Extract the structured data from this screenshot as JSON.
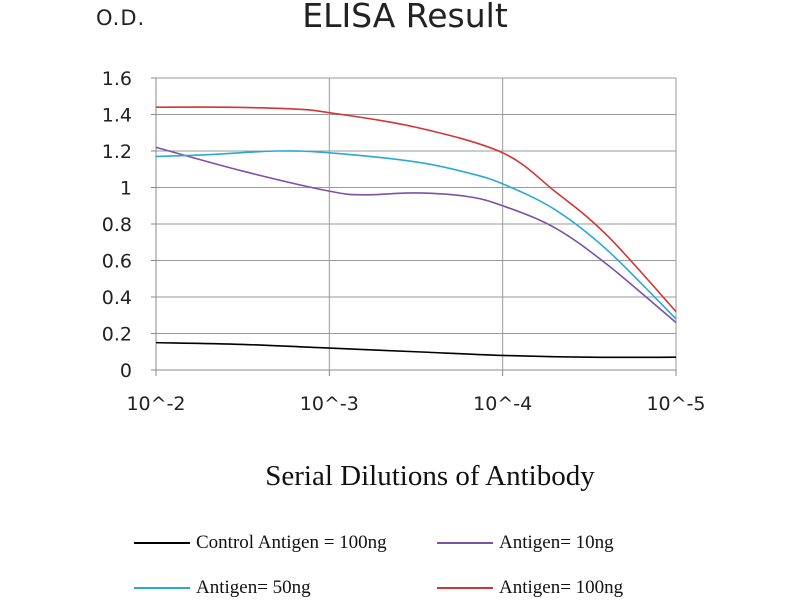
{
  "chart_data": {
    "type": "line",
    "title": "ELISA Result",
    "ylabel": "O.D.",
    "xlabel": "Serial Dilutions of Antibody",
    "categories": [
      "10^-2",
      "10^-3",
      "10^-4",
      "10^-5"
    ],
    "x": [
      0,
      1,
      2,
      3
    ],
    "yticks": [
      "0",
      "0.2",
      "0.4",
      "0.6",
      "0.8",
      "1",
      "1.2",
      "1.4",
      "1.6"
    ],
    "ylim": [
      0,
      1.6
    ],
    "grid": true,
    "legend_position": "bottom",
    "series": [
      {
        "name": "Control Antigen = 100ng",
        "color": "#000000",
        "points": [
          [
            0,
            0.15
          ],
          [
            0.5,
            0.14
          ],
          [
            1,
            0.12
          ],
          [
            1.5,
            0.1
          ],
          [
            2,
            0.08
          ],
          [
            2.5,
            0.07
          ],
          [
            3,
            0.07
          ]
        ]
      },
      {
        "name": "Antigen= 10ng",
        "color": "#7a52a6",
        "points": [
          [
            0,
            1.22
          ],
          [
            0.5,
            1.09
          ],
          [
            1,
            0.98
          ],
          [
            1.2,
            0.96
          ],
          [
            1.5,
            0.97
          ],
          [
            1.8,
            0.95
          ],
          [
            2,
            0.9
          ],
          [
            2.3,
            0.78
          ],
          [
            2.6,
            0.58
          ],
          [
            3,
            0.26
          ]
        ]
      },
      {
        "name": "Antigen= 50ng",
        "color": "#2aa9d6",
        "points": [
          [
            0,
            1.17
          ],
          [
            0.3,
            1.18
          ],
          [
            0.7,
            1.2
          ],
          [
            1,
            1.19
          ],
          [
            1.5,
            1.14
          ],
          [
            1.8,
            1.08
          ],
          [
            2,
            1.02
          ],
          [
            2.3,
            0.88
          ],
          [
            2.6,
            0.66
          ],
          [
            3,
            0.28
          ]
        ]
      },
      {
        "name": "Antigen= 100ng",
        "color": "#d23535",
        "points": [
          [
            0,
            1.44
          ],
          [
            0.4,
            1.44
          ],
          [
            0.8,
            1.43
          ],
          [
            1,
            1.41
          ],
          [
            1.5,
            1.33
          ],
          [
            2,
            1.19
          ],
          [
            2.3,
            0.98
          ],
          [
            2.6,
            0.74
          ],
          [
            3,
            0.32
          ]
        ]
      }
    ]
  }
}
